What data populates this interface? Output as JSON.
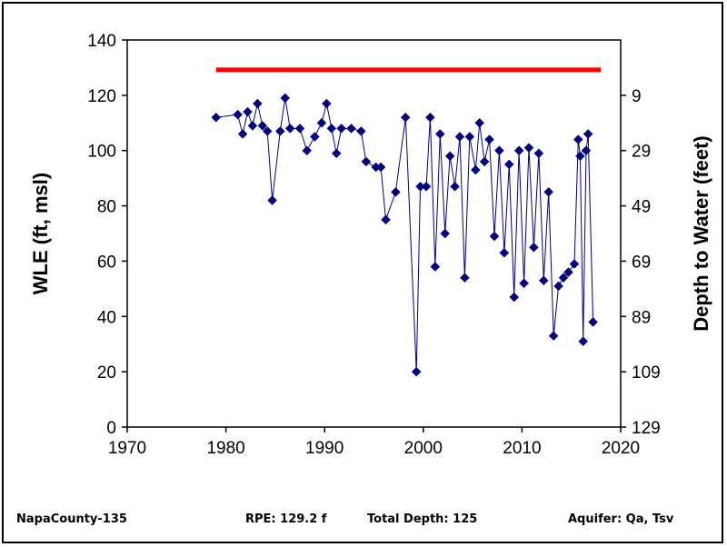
{
  "chart_data": {
    "type": "scatter",
    "title": "",
    "xlabel": "",
    "ylabel": "WLE (ft, msl)",
    "y2label": "Depth to Water (feet)",
    "xlim": [
      1970,
      2020
    ],
    "ylim": [
      0,
      140
    ],
    "x_ticks": [
      "1970",
      "1980",
      "1990",
      "2000",
      "2010",
      "2020"
    ],
    "y_ticks": [
      "0",
      "20",
      "40",
      "60",
      "80",
      "100",
      "120",
      "140"
    ],
    "y2_ticks": [
      "129",
      "109",
      "89",
      "69",
      "49",
      "29",
      "9"
    ],
    "grid": false,
    "legend": "none",
    "reference_line": {
      "y": 129.2,
      "x_range": [
        1979,
        2018
      ],
      "color": "#ff0000"
    },
    "series": [
      {
        "color": "#000080",
        "points": [
          [
            1979.0,
            112
          ],
          [
            1981.2,
            113
          ],
          [
            1981.7,
            106
          ],
          [
            1982.2,
            114
          ],
          [
            1982.7,
            109
          ],
          [
            1983.2,
            117
          ],
          [
            1983.7,
            109
          ],
          [
            1984.2,
            107
          ],
          [
            1984.7,
            82
          ],
          [
            1985.5,
            107
          ],
          [
            1986.0,
            119
          ],
          [
            1986.5,
            108
          ],
          [
            1987.5,
            108
          ],
          [
            1988.2,
            100
          ],
          [
            1989.0,
            105
          ],
          [
            1989.7,
            110
          ],
          [
            1990.2,
            117
          ],
          [
            1990.7,
            108
          ],
          [
            1991.2,
            99
          ],
          [
            1991.7,
            108
          ],
          [
            1992.7,
            108
          ],
          [
            1993.7,
            107
          ],
          [
            1994.2,
            96
          ],
          [
            1995.2,
            94
          ],
          [
            1995.7,
            94
          ],
          [
            1996.2,
            75
          ],
          [
            1997.2,
            85
          ],
          [
            1998.2,
            112
          ],
          [
            1999.3,
            20
          ],
          [
            1999.7,
            87
          ],
          [
            2000.3,
            87
          ],
          [
            2000.7,
            112
          ],
          [
            2001.2,
            58
          ],
          [
            2001.7,
            106
          ],
          [
            2002.2,
            70
          ],
          [
            2002.7,
            98
          ],
          [
            2003.2,
            87
          ],
          [
            2003.7,
            105
          ],
          [
            2004.2,
            54
          ],
          [
            2004.7,
            105
          ],
          [
            2005.3,
            93
          ],
          [
            2005.7,
            110
          ],
          [
            2006.2,
            96
          ],
          [
            2006.7,
            104
          ],
          [
            2007.2,
            69
          ],
          [
            2007.7,
            100
          ],
          [
            2008.2,
            63
          ],
          [
            2008.7,
            95
          ],
          [
            2009.2,
            47
          ],
          [
            2009.7,
            100
          ],
          [
            2010.2,
            52
          ],
          [
            2010.7,
            101
          ],
          [
            2011.2,
            65
          ],
          [
            2011.7,
            99
          ],
          [
            2012.2,
            53
          ],
          [
            2012.7,
            85
          ],
          [
            2013.2,
            33
          ],
          [
            2013.7,
            51
          ],
          [
            2014.2,
            54
          ],
          [
            2014.7,
            56
          ],
          [
            2015.3,
            59
          ],
          [
            2015.7,
            104
          ],
          [
            2015.9,
            98
          ],
          [
            2016.2,
            31
          ],
          [
            2016.5,
            100
          ],
          [
            2016.7,
            106
          ],
          [
            2017.2,
            38
          ]
        ]
      }
    ]
  },
  "footer": {
    "well_id": "NapaCounty-135",
    "rpe": "RPE: 129.2 f",
    "total_depth": "Total Depth: 125",
    "aquifer": "Aquifer: Qa, Tsv"
  }
}
